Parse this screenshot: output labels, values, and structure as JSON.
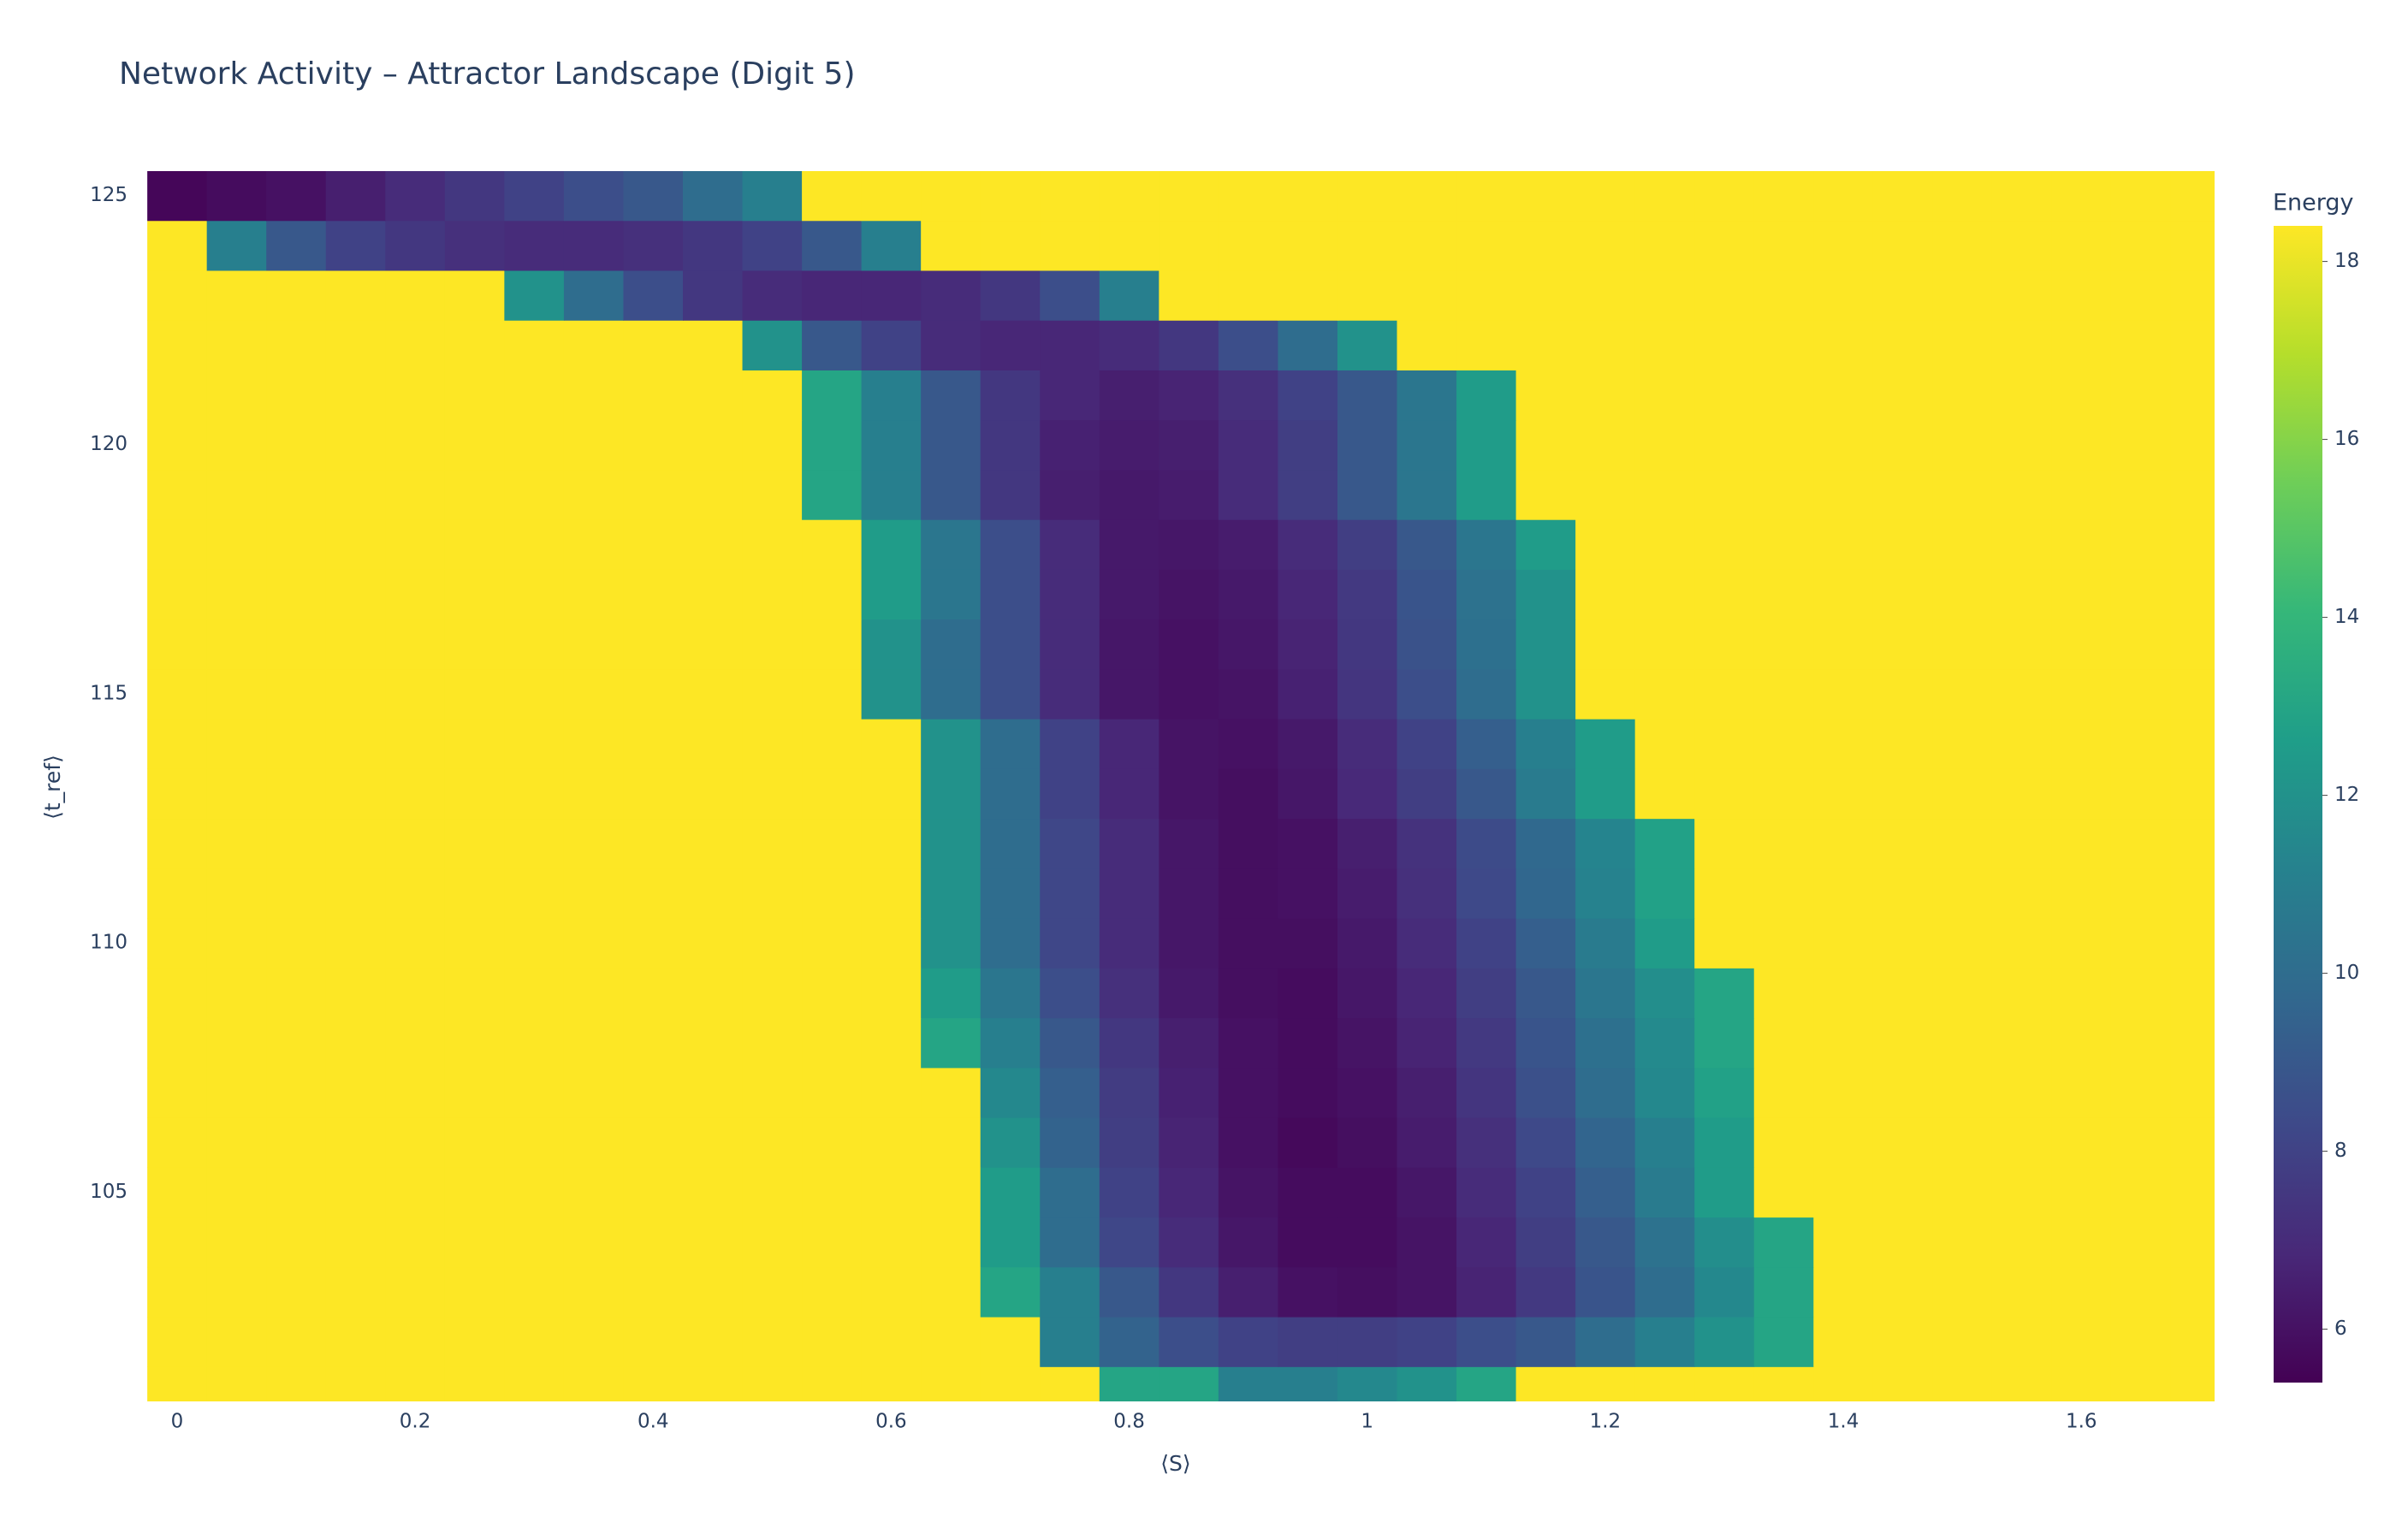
{
  "chart_data": {
    "type": "heatmap",
    "title": "Network Activity – Attractor Landscape (Digit 5)",
    "x_label": "⟨S⟩",
    "y_label": "⟨t_ref⟩",
    "colorbar_title": "Energy",
    "x": [
      0,
      0.05,
      0.1,
      0.15,
      0.2,
      0.25,
      0.3,
      0.35,
      0.4,
      0.45,
      0.5,
      0.55,
      0.6,
      0.65,
      0.7,
      0.75,
      0.8,
      0.85,
      0.9,
      0.95,
      1,
      1.05,
      1.1,
      1.15,
      1.2,
      1.25,
      1.3,
      1.35,
      1.4,
      1.45,
      1.5,
      1.55,
      1.6,
      1.65,
      1.7
    ],
    "y": [
      101,
      102,
      103,
      104,
      105,
      106,
      107,
      108,
      109,
      110,
      111,
      112,
      113,
      114,
      115,
      116,
      117,
      118,
      119,
      120,
      121,
      122,
      123,
      124,
      125
    ],
    "z": [
      [
        18.4,
        18.4,
        18.4,
        18.4,
        18.4,
        18.4,
        18.4,
        18.4,
        18.4,
        18.4,
        18.4,
        18.4,
        18.4,
        18.4,
        18.4,
        18.4,
        13,
        13,
        11,
        11,
        11.5,
        12,
        13,
        18.4,
        18.4,
        18.4,
        18.4,
        18.4,
        18.4,
        18.4,
        18.4,
        18.4,
        18.4,
        18.4,
        18.4
      ],
      [
        18.4,
        18.4,
        18.4,
        18.4,
        18.4,
        18.4,
        18.4,
        18.4,
        18.4,
        18.4,
        18.4,
        18.4,
        18.4,
        18.4,
        18.4,
        11,
        9.5,
        8.5,
        8,
        7.8,
        7.8,
        8,
        8.5,
        9,
        10,
        11,
        12,
        13,
        18.4,
        18.4,
        18.4,
        18.4,
        18.4,
        18.4,
        18.4
      ],
      [
        18.4,
        18.4,
        18.4,
        18.4,
        18.4,
        18.4,
        18.4,
        18.4,
        18.4,
        18.4,
        18.4,
        18.4,
        18.4,
        18.4,
        13,
        11,
        9,
        7.5,
        6.5,
        6,
        5.9,
        6.1,
        6.7,
        7.6,
        8.8,
        10,
        11.5,
        13,
        18.4,
        18.4,
        18.4,
        18.4,
        18.4,
        18.4,
        18.4
      ],
      [
        18.4,
        18.4,
        18.4,
        18.4,
        18.4,
        18.4,
        18.4,
        18.4,
        18.4,
        18.4,
        18.4,
        18.4,
        18.4,
        18.4,
        12.5,
        10,
        8.2,
        7,
        6.2,
        5.8,
        5.8,
        6.1,
        6.8,
        7.8,
        9,
        10.3,
        11.8,
        13,
        18.4,
        18.4,
        18.4,
        18.4,
        18.4,
        18.4,
        18.4
      ],
      [
        18.4,
        18.4,
        18.4,
        18.4,
        18.4,
        18.4,
        18.4,
        18.4,
        18.4,
        18.4,
        18.4,
        18.4,
        18.4,
        18.4,
        12.5,
        10,
        8,
        6.8,
        6.1,
        5.8,
        5.8,
        6.2,
        7,
        8,
        9.3,
        10.8,
        12.5,
        18.4,
        18.4,
        18.4,
        18.4,
        18.4,
        18.4,
        18.4,
        18.4
      ],
      [
        18.4,
        18.4,
        18.4,
        18.4,
        18.4,
        18.4,
        18.4,
        18.4,
        18.4,
        18.4,
        18.4,
        18.4,
        18.4,
        18.4,
        12,
        9.5,
        7.8,
        6.7,
        6,
        5.7,
        5.9,
        6.4,
        7.2,
        8.3,
        9.6,
        11,
        12.5,
        18.4,
        18.4,
        18.4,
        18.4,
        18.4,
        18.4,
        18.4,
        18.4
      ],
      [
        18.4,
        18.4,
        18.4,
        18.4,
        18.4,
        18.4,
        18.4,
        18.4,
        18.4,
        18.4,
        18.4,
        18.4,
        18.4,
        18.4,
        11.5,
        9.3,
        7.7,
        6.6,
        6,
        5.8,
        6,
        6.5,
        7.4,
        8.6,
        10,
        11.5,
        12.8,
        18.4,
        18.4,
        18.4,
        18.4,
        18.4,
        18.4,
        18.4,
        18.4
      ],
      [
        18.4,
        18.4,
        18.4,
        18.4,
        18.4,
        18.4,
        18.4,
        18.4,
        18.4,
        18.4,
        18.4,
        18.4,
        18.4,
        13,
        11,
        9,
        7.5,
        6.5,
        6,
        5.8,
        6.1,
        6.7,
        7.6,
        8.8,
        10.2,
        11.6,
        13,
        18.4,
        18.4,
        18.4,
        18.4,
        18.4,
        18.4,
        18.4,
        18.4
      ],
      [
        18.4,
        18.4,
        18.4,
        18.4,
        18.4,
        18.4,
        18.4,
        18.4,
        18.4,
        18.4,
        18.4,
        18.4,
        18.4,
        12.5,
        10.5,
        8.5,
        7.2,
        6.3,
        5.9,
        5.8,
        6.2,
        6.8,
        7.8,
        9,
        10.5,
        11.8,
        13,
        18.4,
        18.4,
        18.4,
        18.4,
        18.4,
        18.4,
        18.4,
        18.4
      ],
      [
        18.4,
        18.4,
        18.4,
        18.4,
        18.4,
        18.4,
        18.4,
        18.4,
        18.4,
        18.4,
        18.4,
        18.4,
        18.4,
        12,
        10,
        8.2,
        7,
        6.2,
        5.9,
        5.9,
        6.3,
        7,
        8,
        9.3,
        10.8,
        12.5,
        18.4,
        18.4,
        18.4,
        18.4,
        18.4,
        18.4,
        18.4,
        18.4,
        18.4
      ],
      [
        18.4,
        18.4,
        18.4,
        18.4,
        18.4,
        18.4,
        18.4,
        18.4,
        18.4,
        18.4,
        18.4,
        18.4,
        18.4,
        12,
        10,
        8.2,
        7,
        6.2,
        5.9,
        6,
        6.4,
        7.2,
        8.3,
        9.7,
        11.2,
        12.8,
        18.4,
        18.4,
        18.4,
        18.4,
        18.4,
        18.4,
        18.4,
        18.4,
        18.4
      ],
      [
        18.4,
        18.4,
        18.4,
        18.4,
        18.4,
        18.4,
        18.4,
        18.4,
        18.4,
        18.4,
        18.4,
        18.4,
        18.4,
        12,
        10,
        8.2,
        7,
        6.2,
        5.9,
        6,
        6.5,
        7.3,
        8.4,
        9.8,
        11.3,
        12.8,
        18.4,
        18.4,
        18.4,
        18.4,
        18.4,
        18.4,
        18.4,
        18.4,
        18.4
      ],
      [
        18.4,
        18.4,
        18.4,
        18.4,
        18.4,
        18.4,
        18.4,
        18.4,
        18.4,
        18.4,
        18.4,
        18.4,
        18.4,
        12,
        10,
        8,
        6.8,
        6.1,
        5.9,
        6.2,
        6.9,
        7.8,
        9,
        10.8,
        12.5,
        18.4,
        18.4,
        18.4,
        18.4,
        18.4,
        18.4,
        18.4,
        18.4,
        18.4,
        18.4
      ],
      [
        18.4,
        18.4,
        18.4,
        18.4,
        18.4,
        18.4,
        18.4,
        18.4,
        18.4,
        18.4,
        18.4,
        18.4,
        18.4,
        12,
        10,
        8,
        6.8,
        6.1,
        6,
        6.3,
        7,
        8,
        9.3,
        11,
        12.5,
        18.4,
        18.4,
        18.4,
        18.4,
        18.4,
        18.4,
        18.4,
        18.4,
        18.4,
        18.4
      ],
      [
        18.4,
        18.4,
        18.4,
        18.4,
        18.4,
        18.4,
        18.4,
        18.4,
        18.4,
        18.4,
        18.4,
        18.4,
        12,
        10,
        8.5,
        7,
        6.2,
        6,
        6.1,
        6.6,
        7.4,
        8.5,
        10,
        12,
        18.4,
        18.4,
        18.4,
        18.4,
        18.4,
        18.4,
        18.4,
        18.4,
        18.4,
        18.4,
        18.4
      ],
      [
        18.4,
        18.4,
        18.4,
        18.4,
        18.4,
        18.4,
        18.4,
        18.4,
        18.4,
        18.4,
        18.4,
        18.4,
        12,
        10,
        8.5,
        7,
        6.2,
        6,
        6.2,
        6.7,
        7.5,
        8.7,
        10.2,
        12,
        18.4,
        18.4,
        18.4,
        18.4,
        18.4,
        18.4,
        18.4,
        18.4,
        18.4,
        18.4,
        18.4
      ],
      [
        18.4,
        18.4,
        18.4,
        18.4,
        18.4,
        18.4,
        18.4,
        18.4,
        18.4,
        18.4,
        18.4,
        18.4,
        12.5,
        10.5,
        8.5,
        7,
        6.3,
        6.1,
        6.3,
        6.8,
        7.6,
        8.8,
        10.3,
        12,
        18.4,
        18.4,
        18.4,
        18.4,
        18.4,
        18.4,
        18.4,
        18.4,
        18.4,
        18.4,
        18.4
      ],
      [
        18.4,
        18.4,
        18.4,
        18.4,
        18.4,
        18.4,
        18.4,
        18.4,
        18.4,
        18.4,
        18.4,
        18.4,
        12.5,
        10.5,
        8.5,
        7,
        6.3,
        6.2,
        6.4,
        7,
        7.8,
        9,
        10.5,
        12.5,
        18.4,
        18.4,
        18.4,
        18.4,
        18.4,
        18.4,
        18.4,
        18.4,
        18.4,
        18.4,
        18.4
      ],
      [
        18.4,
        18.4,
        18.4,
        18.4,
        18.4,
        18.4,
        18.4,
        18.4,
        18.4,
        18.4,
        18.4,
        13,
        11,
        9,
        7.5,
        6.5,
        6.3,
        6.4,
        7,
        7.8,
        9,
        10.5,
        12.5,
        18.4,
        18.4,
        18.4,
        18.4,
        18.4,
        18.4,
        18.4,
        18.4,
        18.4,
        18.4,
        18.4,
        18.4
      ],
      [
        18.4,
        18.4,
        18.4,
        18.4,
        18.4,
        18.4,
        18.4,
        18.4,
        18.4,
        18.4,
        18.4,
        13,
        11,
        9,
        7.5,
        6.6,
        6.4,
        6.5,
        7,
        7.8,
        9,
        10.5,
        12.5,
        18.4,
        18.4,
        18.4,
        18.4,
        18.4,
        18.4,
        18.4,
        18.4,
        18.4,
        18.4,
        18.4,
        18.4
      ],
      [
        18.4,
        18.4,
        18.4,
        18.4,
        18.4,
        18.4,
        18.4,
        18.4,
        18.4,
        18.4,
        18.4,
        13,
        11,
        9,
        7.5,
        6.8,
        6.5,
        6.7,
        7.2,
        8,
        9,
        10.5,
        12.5,
        18.4,
        18.4,
        18.4,
        18.4,
        18.4,
        18.4,
        18.4,
        18.4,
        18.4,
        18.4,
        18.4,
        18.4
      ],
      [
        18.4,
        18.4,
        18.4,
        18.4,
        18.4,
        18.4,
        18.4,
        18.4,
        18.4,
        18.4,
        12,
        9,
        8,
        7,
        6.8,
        6.8,
        7,
        7.5,
        8.5,
        10,
        12,
        18.4,
        18.4,
        18.4,
        18.4,
        18.4,
        18.4,
        18.4,
        18.4,
        18.4,
        18.4,
        18.4,
        18.4,
        18.4,
        18.4
      ],
      [
        18.4,
        18.4,
        18.4,
        18.4,
        18.4,
        18.4,
        12,
        10,
        8.5,
        7.5,
        7,
        6.8,
        6.8,
        7,
        7.5,
        8.5,
        11,
        18.4,
        18.4,
        18.4,
        18.4,
        18.4,
        18.4,
        18.4,
        18.4,
        18.4,
        18.4,
        18.4,
        18.4,
        18.4,
        18.4,
        18.4,
        18.4,
        18.4,
        18.4
      ],
      [
        18.4,
        11,
        9,
        8,
        7.5,
        7.2,
        7,
        7,
        7.2,
        7.5,
        8,
        9,
        11,
        18.4,
        18.4,
        18.4,
        18.4,
        18.4,
        18.4,
        18.4,
        18.4,
        18.4,
        18.4,
        18.4,
        18.4,
        18.4,
        18.4,
        18.4,
        18.4,
        18.4,
        18.4,
        18.4,
        18.4,
        18.4,
        18.4
      ],
      [
        5.6,
        5.8,
        6,
        6.5,
        7,
        7.5,
        8,
        8.5,
        9,
        10,
        11,
        18.4,
        18.4,
        18.4,
        18.4,
        18.4,
        18.4,
        18.4,
        18.4,
        18.4,
        18.4,
        18.4,
        18.4,
        18.4,
        18.4,
        18.4,
        18.4,
        18.4,
        18.4,
        18.4,
        18.4,
        18.4,
        18.4,
        18.4,
        18.4
      ]
    ],
    "xlim": [
      -0.033,
      1.712
    ],
    "ylim": [
      100.8,
      125.49
    ],
    "zlim": [
      5.4,
      18.4
    ],
    "xticks": [
      0,
      0.2,
      0.4,
      0.6,
      0.8,
      1,
      1.2,
      1.4,
      1.6
    ],
    "yticks": [
      105,
      110,
      115,
      120,
      125
    ],
    "zticks": [
      6,
      8,
      10,
      12,
      14,
      16,
      18
    ],
    "colorscale": [
      "#440154",
      "#482878",
      "#3e4989",
      "#31688e",
      "#26828e",
      "#1f9e89",
      "#35b779",
      "#6ece58",
      "#b5de2b",
      "#fde725"
    ]
  }
}
